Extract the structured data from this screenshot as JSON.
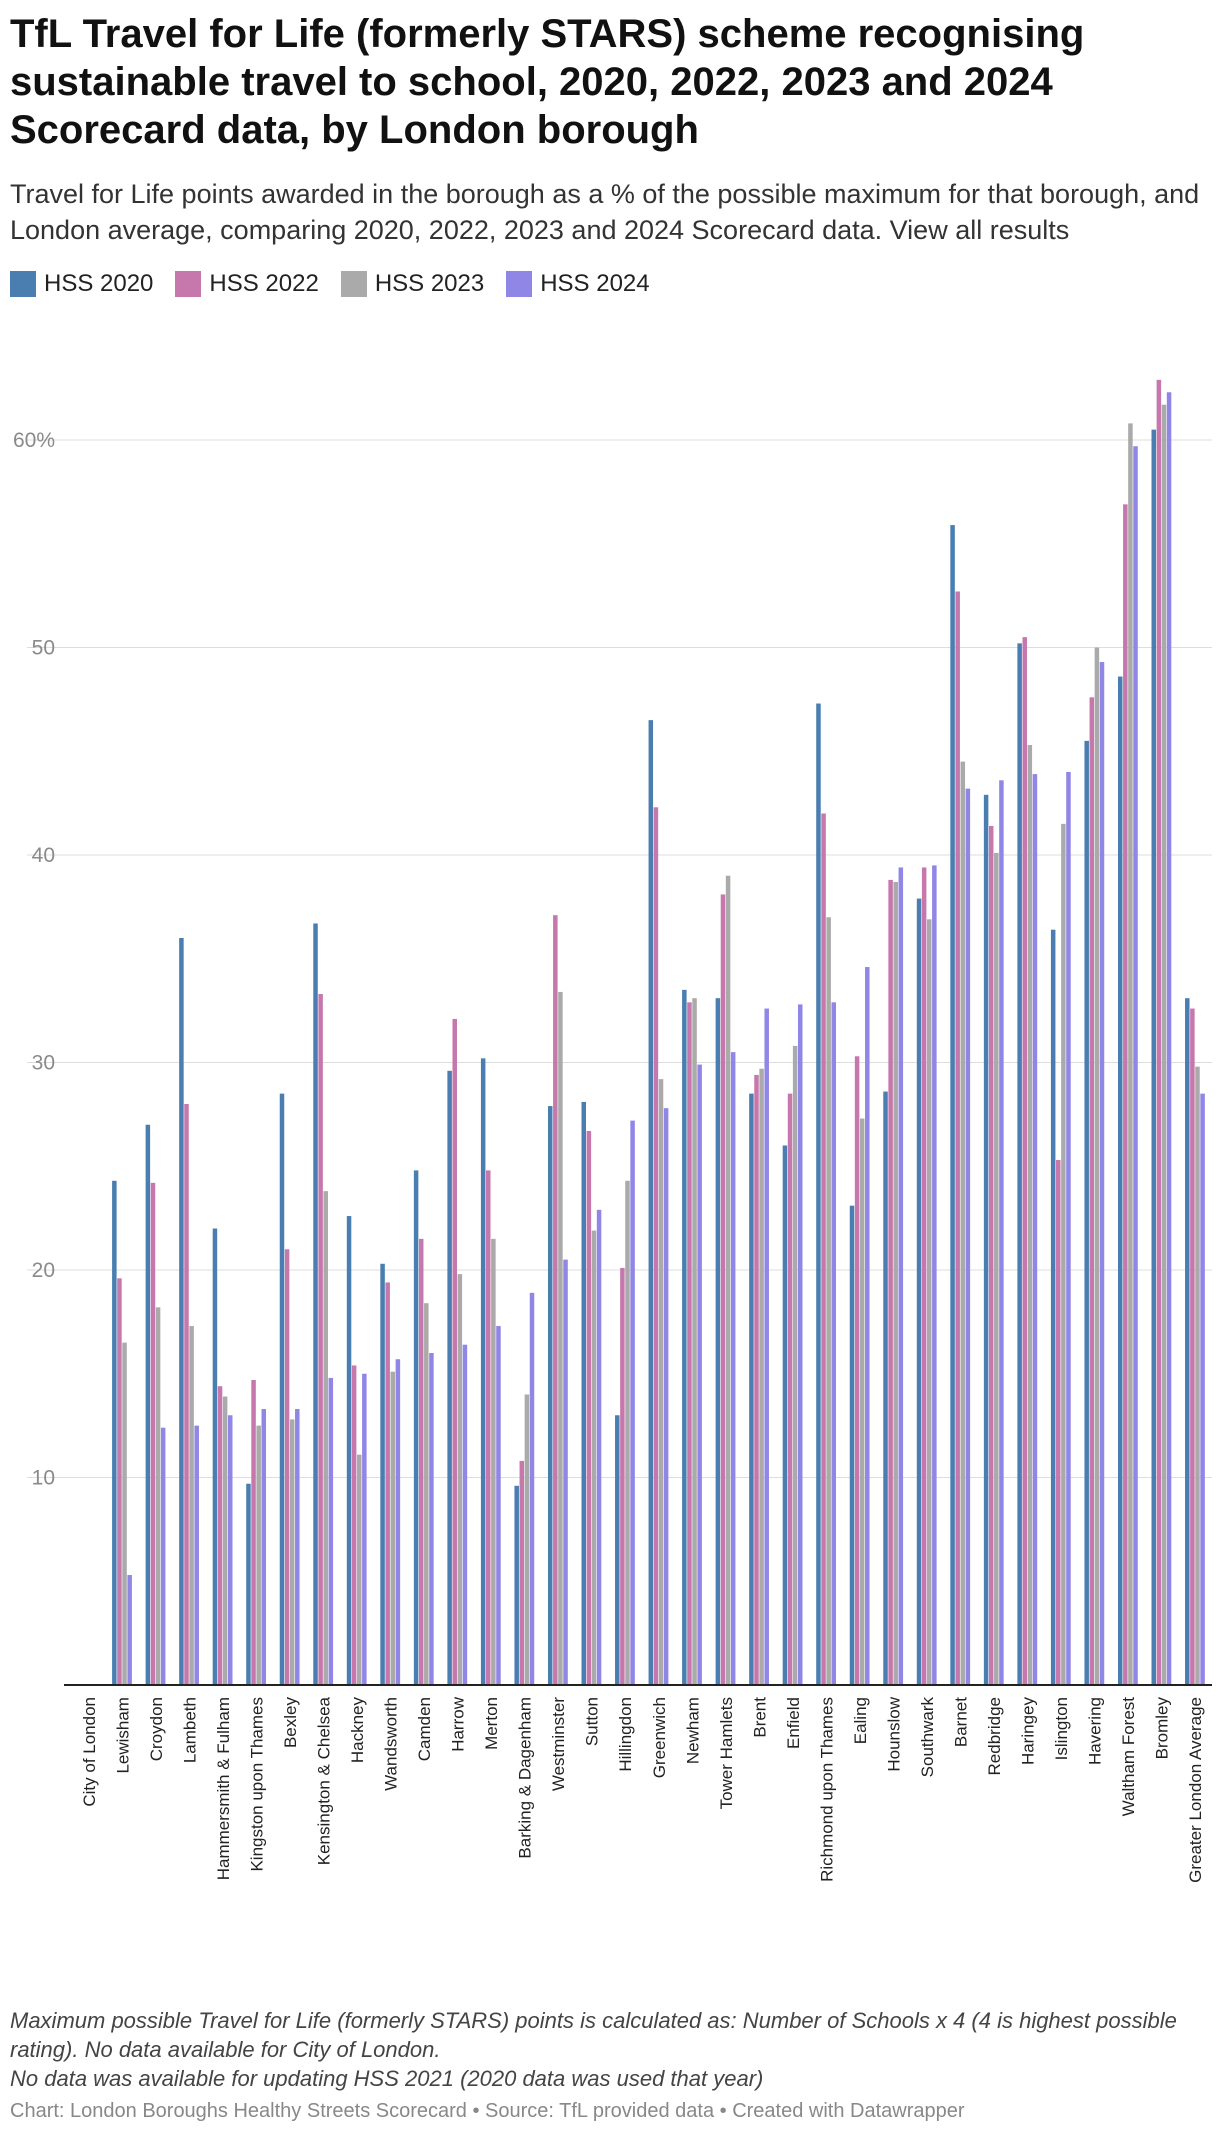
{
  "title": "TfL Travel for Life (formerly STARS) scheme recognising sustainable travel to school, 2020, 2022, 2023 and 2024 Scorecard data, by London borough",
  "subtitle": "Travel for Life points awarded in the borough as a % of the possible maximum for that borough, and London average, comparing 2020, 2022, 2023 and 2024 Scorecard data. View all results",
  "notes": [
    "Maximum possible Travel for Life (formerly STARS) points is calculated as: Number of Schools x 4 (4 is highest possible rating). No data available for City of London.",
    "No data was available for updating HSS 2021 (2020 data was used that year)"
  ],
  "credits": "Chart: London Boroughs Healthy Streets Scorecard • Source: TfL provided data • Created with Datawrapper",
  "chart_data": {
    "type": "bar",
    "title": "TfL Travel for Life (formerly STARS) scheme recognising sustainable travel to school, 2020, 2022, 2023 and 2024 Scorecard data, by London borough",
    "xlabel": "",
    "ylabel": "",
    "ylim": [
      0,
      63
    ],
    "yticks": [
      10,
      20,
      30,
      40,
      50,
      60
    ],
    "ytick_labels": [
      "10",
      "20",
      "30",
      "40",
      "50",
      "60%"
    ],
    "grid": true,
    "legend_position": "top-left",
    "categories": [
      "City of London",
      "Lewisham",
      "Croydon",
      "Lambeth",
      "Hammersmith & Fulham",
      "Kingston upon Thames",
      "Bexley",
      "Kensington & Chelsea",
      "Hackney",
      "Wandsworth",
      "Camden",
      "Harrow",
      "Merton",
      "Barking & Dagenham",
      "Westminster",
      "Sutton",
      "Hillingdon",
      "Greenwich",
      "Newham",
      "Tower Hamlets",
      "Brent",
      "Enfield",
      "Richmond upon Thames",
      "Ealing",
      "Hounslow",
      "Southwark",
      "Barnet",
      "Redbridge",
      "Haringey",
      "Islington",
      "Havering",
      "Waltham Forest",
      "Bromley",
      "Greater London Average"
    ],
    "series": [
      {
        "name": "HSS 2020",
        "color": "#4a7eb0",
        "values": [
          null,
          24.3,
          27.0,
          36.0,
          22.0,
          9.7,
          28.5,
          36.7,
          22.6,
          20.3,
          24.8,
          29.6,
          30.2,
          9.6,
          27.9,
          28.1,
          13.0,
          46.5,
          33.5,
          33.1,
          28.5,
          26.0,
          47.3,
          23.1,
          28.6,
          37.9,
          55.9,
          42.9,
          50.2,
          36.4,
          45.5,
          48.6,
          60.5,
          33.1
        ]
      },
      {
        "name": "HSS 2022",
        "color": "#c678ad",
        "values": [
          null,
          19.6,
          24.2,
          28.0,
          14.4,
          14.7,
          21.0,
          33.3,
          15.4,
          19.4,
          21.5,
          32.1,
          24.8,
          10.8,
          37.1,
          26.7,
          20.1,
          42.3,
          32.9,
          38.1,
          29.4,
          28.5,
          42.0,
          30.3,
          38.8,
          39.4,
          52.7,
          41.4,
          50.5,
          25.3,
          47.6,
          56.9,
          62.9,
          32.6
        ]
      },
      {
        "name": "HSS 2023",
        "color": "#aaaaaa",
        "values": [
          null,
          16.5,
          18.2,
          17.3,
          13.9,
          12.5,
          12.8,
          23.8,
          11.1,
          15.1,
          18.4,
          19.8,
          21.5,
          14.0,
          33.4,
          21.9,
          24.3,
          29.2,
          33.1,
          39.0,
          29.7,
          30.8,
          37.0,
          27.3,
          38.7,
          36.9,
          44.5,
          40.1,
          45.3,
          41.5,
          50.0,
          60.8,
          61.7,
          29.8
        ]
      },
      {
        "name": "HSS 2024",
        "color": "#9086e6",
        "values": [
          null,
          5.3,
          12.4,
          12.5,
          13.0,
          13.3,
          13.3,
          14.8,
          15.0,
          15.7,
          16.0,
          16.4,
          17.3,
          18.9,
          20.5,
          22.9,
          27.2,
          27.8,
          29.9,
          30.5,
          32.6,
          32.8,
          32.9,
          34.6,
          39.4,
          39.5,
          43.2,
          43.6,
          43.9,
          44.0,
          49.3,
          59.7,
          62.3,
          28.5
        ]
      }
    ]
  }
}
